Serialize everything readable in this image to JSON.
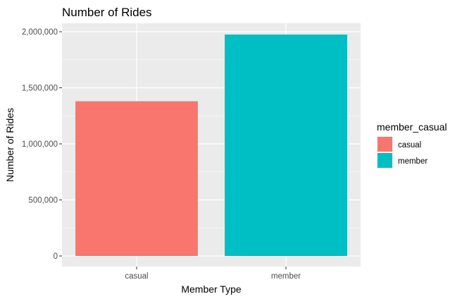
{
  "chart_data": {
    "type": "bar",
    "title": "Number of Rides",
    "xlabel": "Member Type",
    "ylabel": "Number of Rides",
    "categories": [
      "casual",
      "member"
    ],
    "values": [
      1380000,
      1975000
    ],
    "colors": [
      "#F8766D",
      "#00BFC4"
    ],
    "ylim": [
      0,
      2000000
    ],
    "yticks": [
      0,
      500000,
      1000000,
      1500000,
      2000000
    ],
    "ytick_labels": [
      "0",
      "500,000",
      "1,000,000",
      "1,500,000",
      "2,000,000"
    ],
    "grid": true,
    "panel_background": "#EBEBEB",
    "legend": {
      "title": "member_casual",
      "placement": "right",
      "entries": [
        "casual",
        "member"
      ]
    }
  }
}
